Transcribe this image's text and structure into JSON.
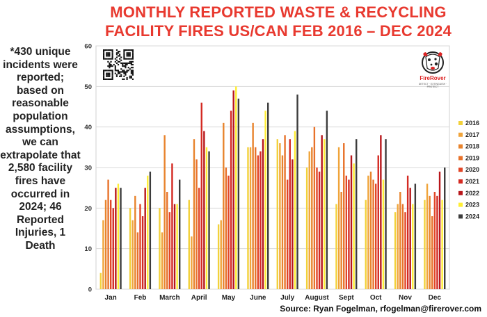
{
  "title": "MONTHLY REPORTED WASTE & RECYCLING FACILITY FIRES US/CAN FEB 2016 – DEC 2024",
  "note": "*430 unique incidents were reported; based on reasonable population assumptions, we can extrapolate that 2,580 facility fires have occurred in 2024; 46 Reported Injuries, 1 Death",
  "source": "Source: Ryan Fogelman, rfogelman@firerover.com",
  "logo": {
    "brand": "FireRover",
    "tagline": "DETECT · EXTINGUISH · PROTECT"
  },
  "chart_data": {
    "type": "bar",
    "categories": [
      "Jan",
      "Feb",
      "March",
      "April",
      "May",
      "June",
      "July",
      "August",
      "Sept",
      "Oct",
      "Nov",
      "Dec"
    ],
    "ylim": [
      0,
      60
    ],
    "yticks": [
      0,
      10,
      20,
      30,
      40,
      50,
      60
    ],
    "grid": true,
    "legend": "right",
    "series": [
      {
        "name": "2016",
        "color": "#f2d13a",
        "values": [
          4,
          20,
          20,
          22,
          16,
          35,
          37,
          30,
          21,
          22,
          19,
          22
        ]
      },
      {
        "name": "2017",
        "color": "#f0a43a",
        "values": [
          17,
          17,
          14,
          13,
          17,
          35,
          36,
          34,
          35,
          28,
          21,
          26
        ]
      },
      {
        "name": "2018",
        "color": "#e8832c",
        "values": [
          22,
          23,
          38,
          37,
          41,
          41,
          33,
          35,
          24,
          29,
          24,
          23
        ]
      },
      {
        "name": "2019",
        "color": "#e8722a",
        "values": [
          27,
          14,
          24,
          32,
          30,
          35,
          38,
          40,
          36,
          27,
          21,
          18
        ]
      },
      {
        "name": "2020",
        "color": "#e24526",
        "values": [
          22,
          21,
          19,
          25,
          28,
          33,
          27,
          30,
          28,
          26,
          19,
          24
        ]
      },
      {
        "name": "2021",
        "color": "#d42a22",
        "values": [
          20,
          18,
          31,
          46,
          44,
          34,
          37,
          29,
          27,
          33,
          28,
          23
        ]
      },
      {
        "name": "2022",
        "color": "#b8161a",
        "values": [
          25,
          25,
          21,
          39,
          49,
          37,
          32,
          38,
          33,
          38,
          25,
          29
        ]
      },
      {
        "name": "2023",
        "color": "#ffee33",
        "values": [
          26,
          28,
          21,
          35,
          50,
          44,
          39,
          37,
          31,
          27,
          21,
          22
        ]
      },
      {
        "name": "2024",
        "color": "#3c3c3c",
        "values": [
          25,
          29,
          27,
          34,
          47,
          46,
          48,
          44,
          37,
          37,
          26,
          30
        ]
      }
    ]
  }
}
